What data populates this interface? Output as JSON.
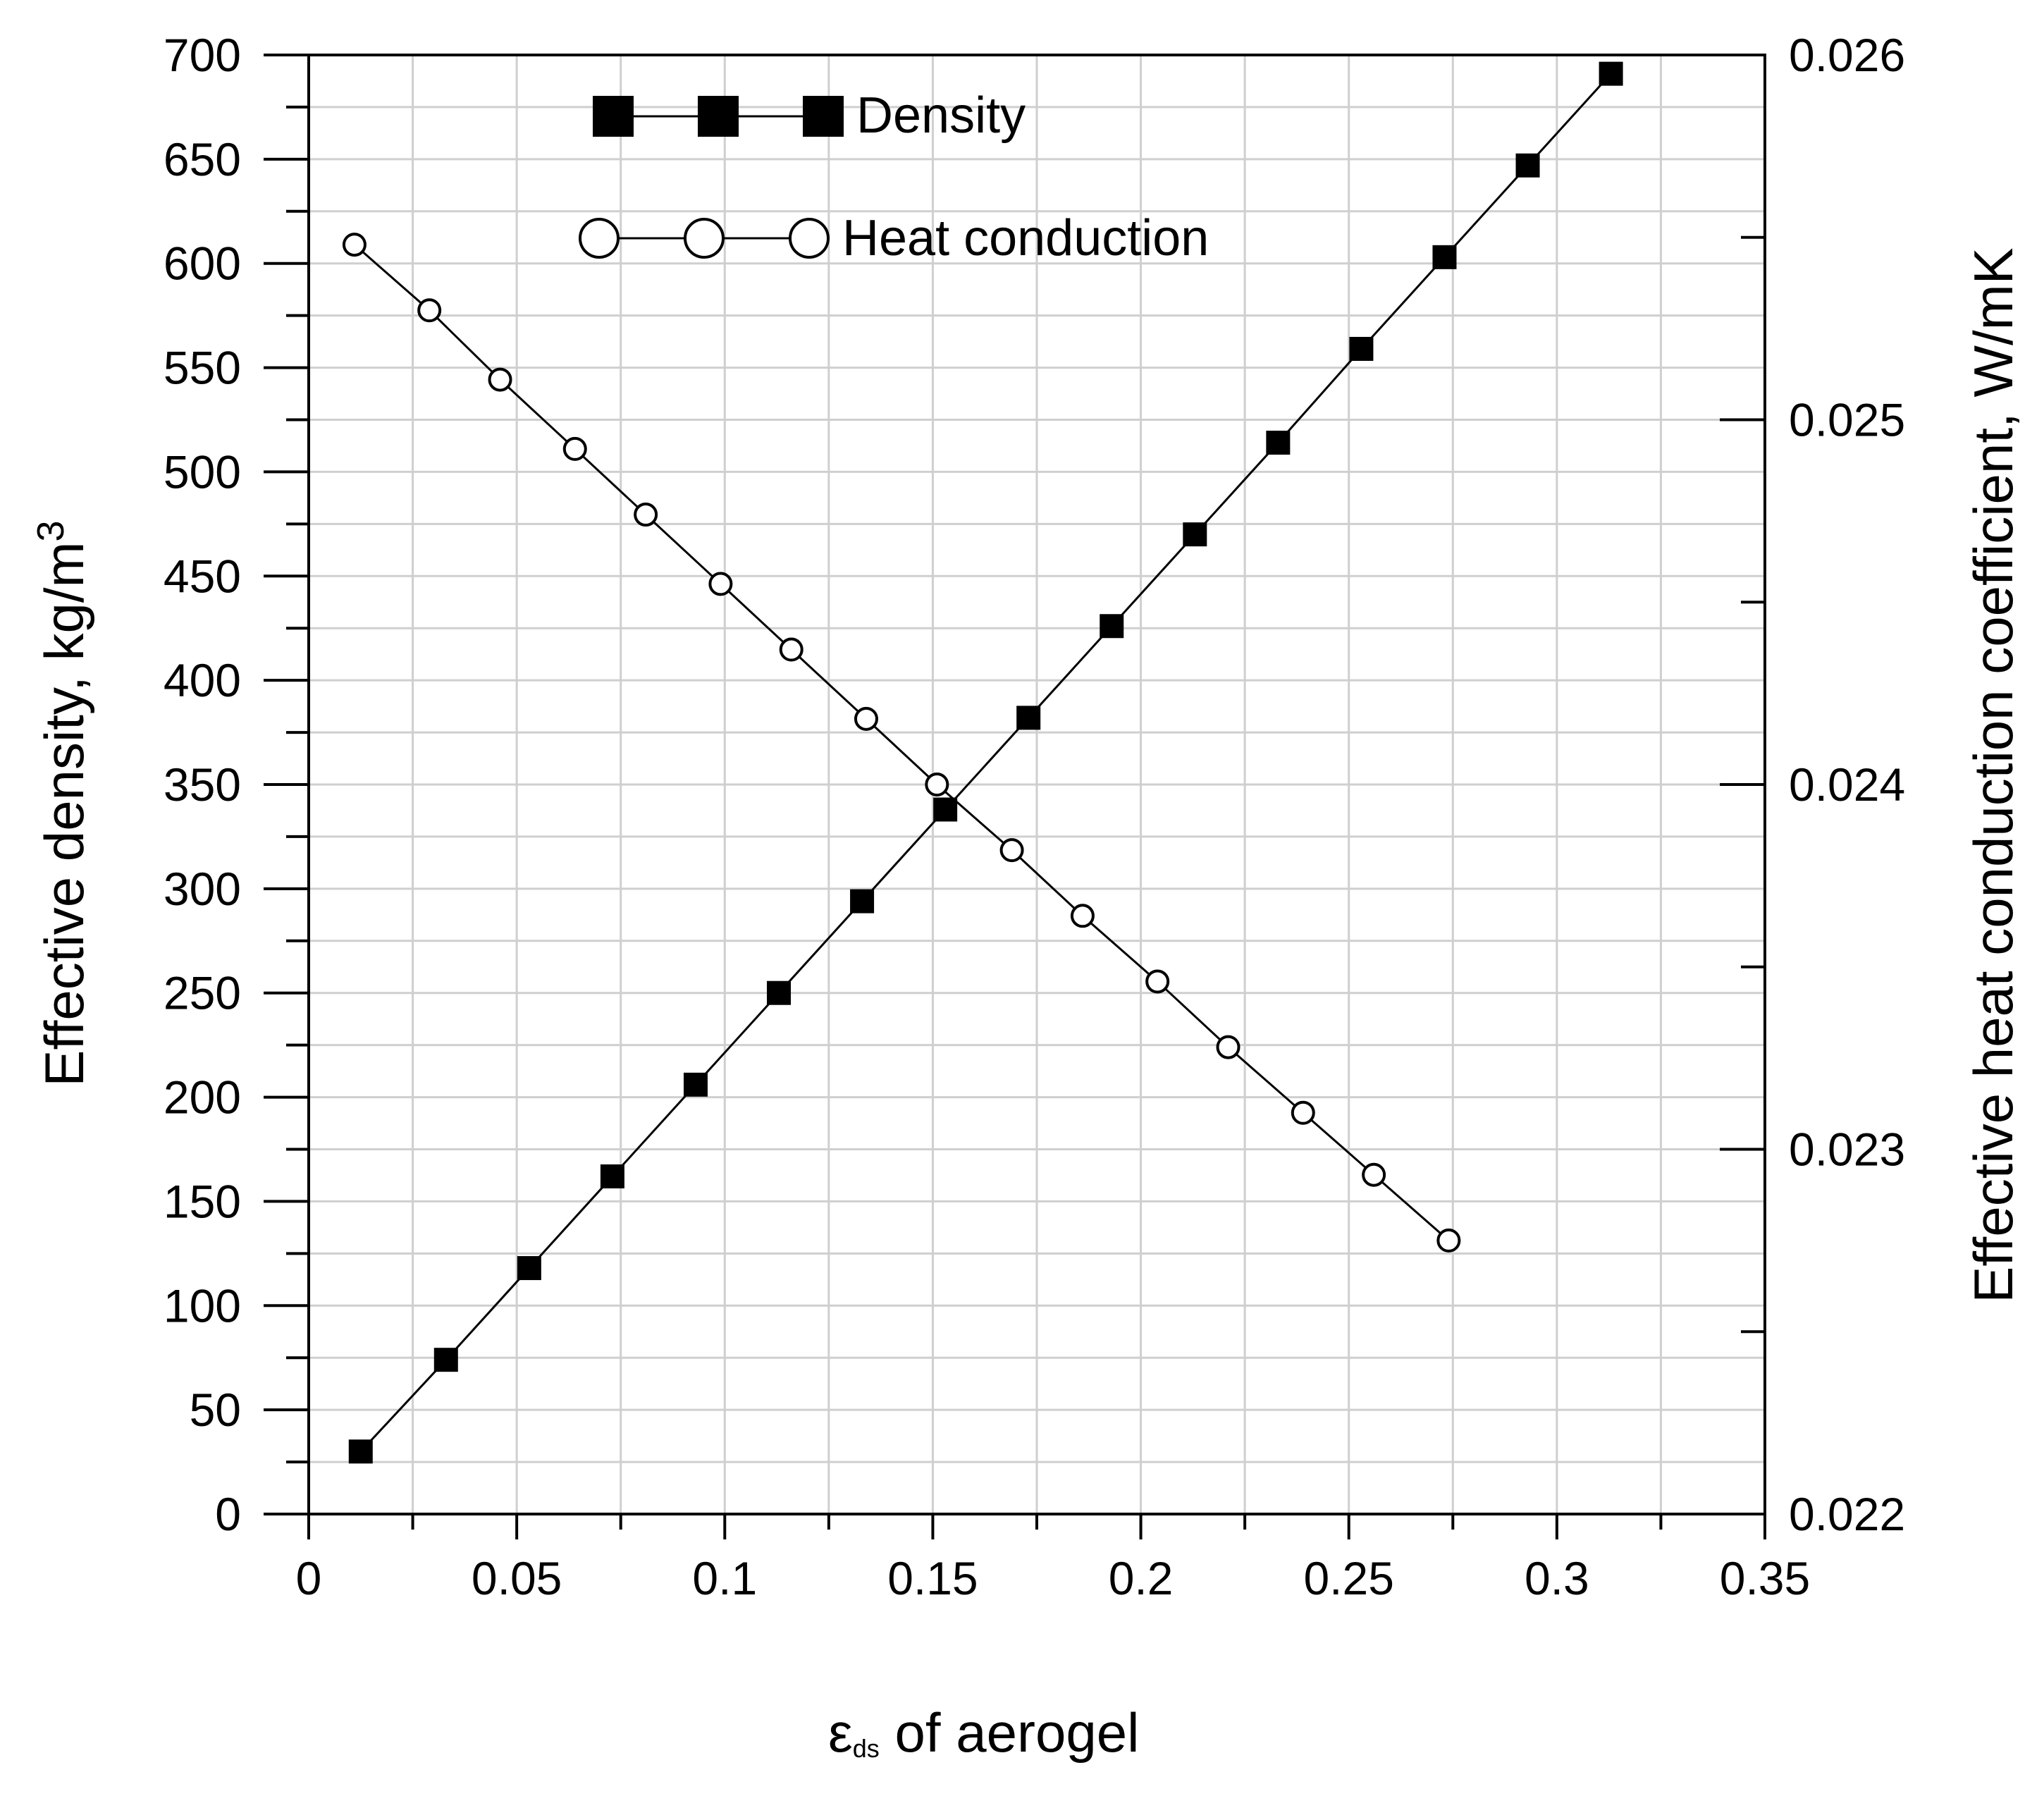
{
  "chart_data": {
    "type": "line",
    "xlabel_main": "ε",
    "xlabel_sub": "ds",
    "xlabel_rest": " of aerogel",
    "ylabel_left_main": "Effective density, kg/m",
    "ylabel_left_sup": "3",
    "ylabel_right": "Effective heat conduction coefficient, W/mK",
    "xlim": [
      0,
      0.35
    ],
    "ylim_left": [
      0,
      700
    ],
    "ylim_right": [
      0.022,
      0.026
    ],
    "x_ticks": [
      "0",
      "0.05",
      "0.1",
      "0.15",
      "0.2",
      "0.25",
      "0.3",
      "0.35"
    ],
    "y_left_ticks": [
      "0",
      "50",
      "100",
      "150",
      "200",
      "250",
      "300",
      "350",
      "400",
      "450",
      "500",
      "550",
      "600",
      "650",
      "700"
    ],
    "y_right_ticks": [
      "0.022",
      "0.023",
      "0.024",
      "0.025",
      "0.026"
    ],
    "grid": true,
    "legend_position": "top-center",
    "series": [
      {
        "name": "Density",
        "axis": "left",
        "marker": "filled-square",
        "x": [
          0.0125,
          0.033,
          0.053,
          0.073,
          0.093,
          0.113,
          0.133,
          0.153,
          0.173,
          0.193,
          0.213,
          0.233,
          0.253,
          0.273,
          0.293,
          0.313
        ],
        "y": [
          30,
          74,
          118,
          162,
          206,
          250,
          294,
          338,
          382,
          426,
          470,
          514,
          559,
          603,
          647,
          691
        ]
      },
      {
        "name": "Heat conduction",
        "axis": "right",
        "marker": "open-circle",
        "x": [
          0.011,
          0.029,
          0.046,
          0.064,
          0.081,
          0.099,
          0.116,
          0.134,
          0.151,
          0.169,
          0.186,
          0.204,
          0.221,
          0.239,
          0.256,
          0.274
        ],
        "y": [
          0.02548,
          0.0253,
          0.02511,
          0.02492,
          0.02474,
          0.02455,
          0.02437,
          0.02418,
          0.024,
          0.02382,
          0.02364,
          0.02346,
          0.02328,
          0.0231,
          0.02293,
          0.02275
        ]
      }
    ]
  }
}
